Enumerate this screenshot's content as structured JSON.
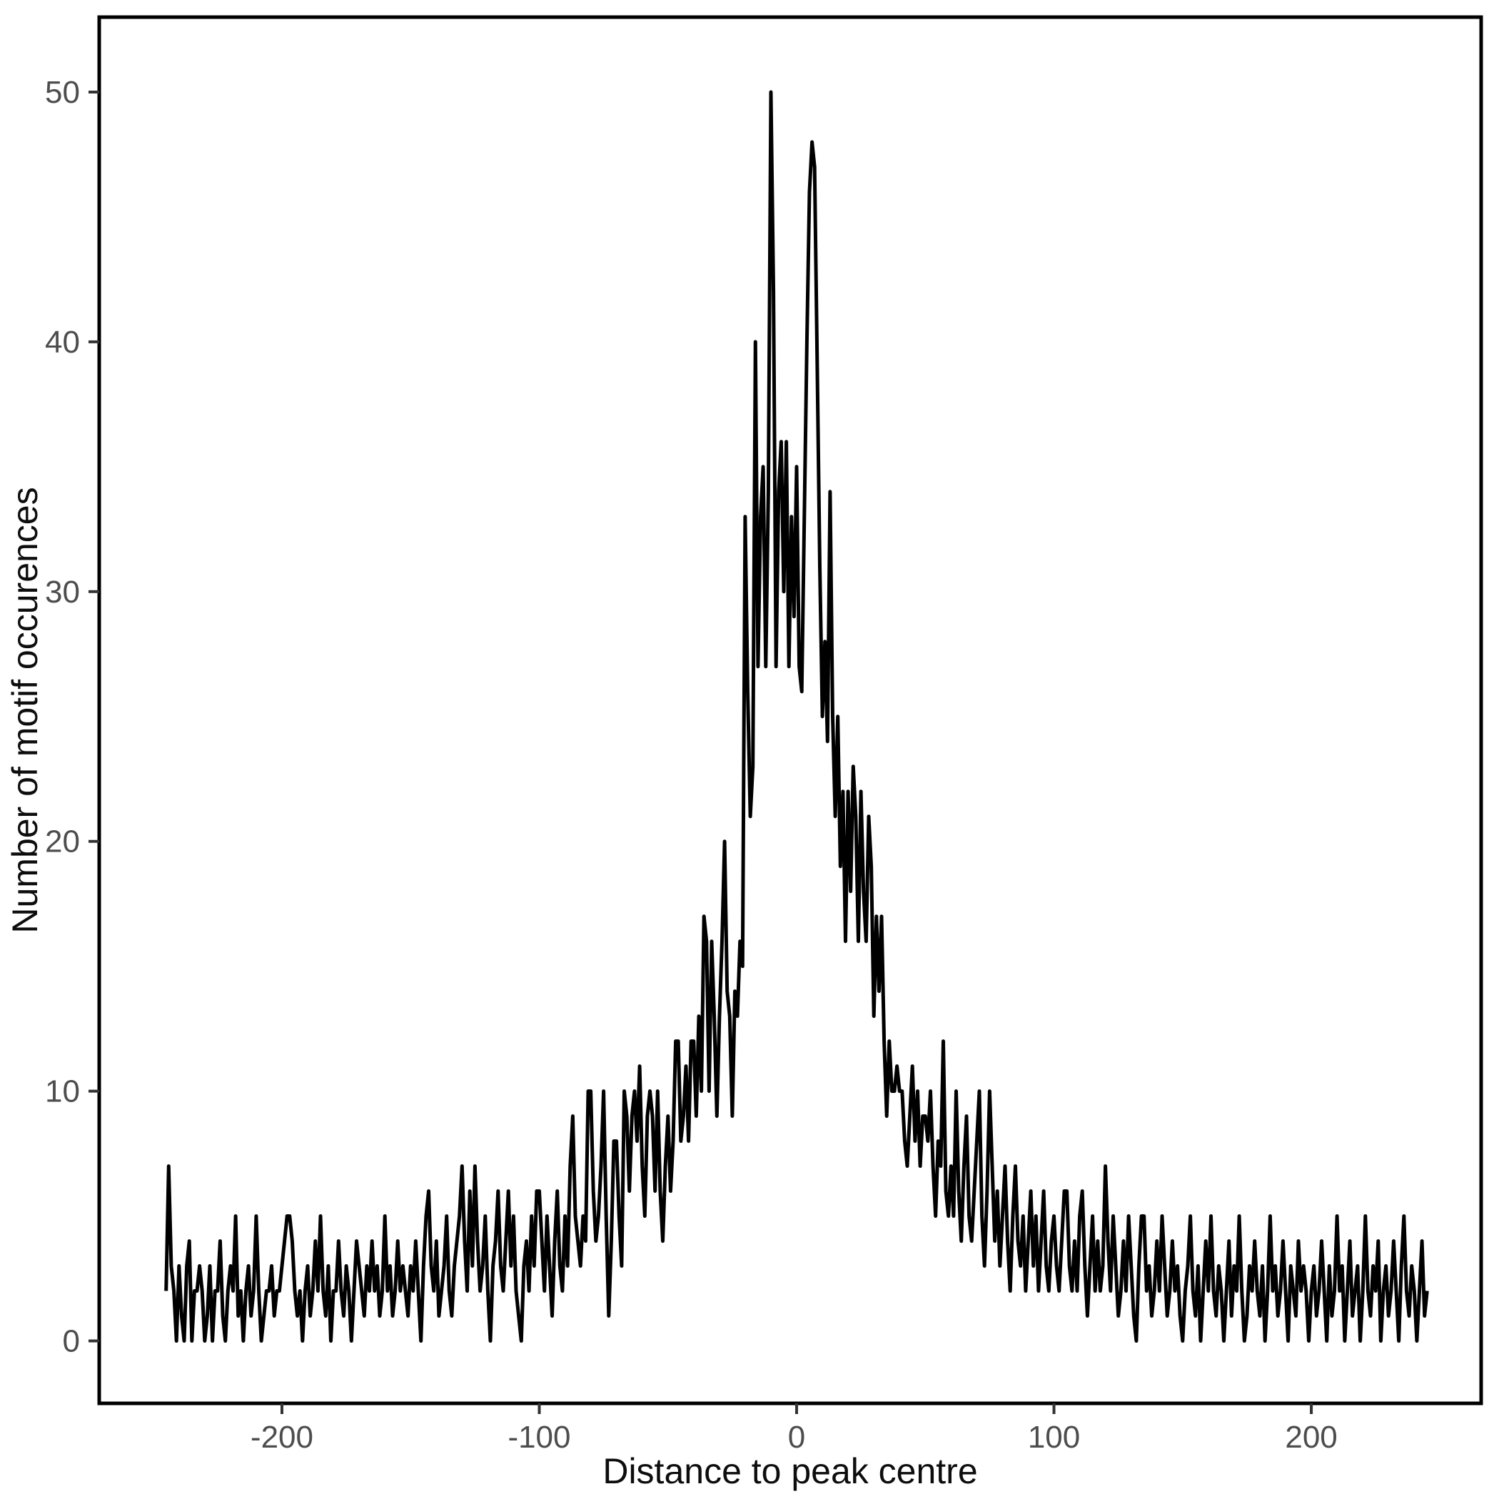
{
  "figure": {
    "background": "#FFFFFF"
  },
  "chart_data": {
    "type": "line",
    "title": "",
    "xlabel": "Distance to peak centre",
    "ylabel": "Number of motif occurences",
    "legend": false,
    "grid": false,
    "panel_border": true,
    "line_color": "#000000",
    "panel_border_color": "#000000",
    "tick_color": "#333333",
    "axis_tick_label_color": "#4D4D4D",
    "axis_title_color": "#0D0D0D",
    "xlim": [
      -271,
      266
    ],
    "ylim": [
      -2.5,
      53
    ],
    "x_ticks": [
      -200,
      -100,
      0,
      100,
      200
    ],
    "y_ticks": [
      0,
      10,
      20,
      30,
      40,
      50
    ],
    "x_start": -245,
    "x_step": 1,
    "values": [
      2,
      7,
      3,
      2,
      0,
      3,
      1,
      0,
      3,
      4,
      0,
      2,
      2,
      3,
      2,
      0,
      1,
      3,
      0,
      2,
      2,
      4,
      1,
      0,
      2,
      3,
      2,
      5,
      1,
      2,
      0,
      2,
      3,
      1,
      2,
      5,
      2,
      0,
      1,
      2,
      2,
      3,
      1,
      2,
      2,
      3,
      4,
      5,
      5,
      4,
      2,
      1,
      2,
      0,
      2,
      3,
      1,
      2,
      4,
      2,
      5,
      2,
      1,
      3,
      0,
      2,
      2,
      4,
      2,
      1,
      3,
      2,
      0,
      2,
      4,
      3,
      2,
      1,
      3,
      2,
      4,
      2,
      3,
      1,
      2,
      5,
      2,
      3,
      1,
      2,
      4,
      2,
      3,
      2,
      1,
      3,
      2,
      4,
      2,
      0,
      3,
      5,
      6,
      3,
      2,
      4,
      1,
      2,
      3,
      5,
      2,
      1,
      3,
      4,
      5,
      7,
      4,
      2,
      6,
      3,
      7,
      4,
      2,
      3,
      5,
      2,
      0,
      3,
      4,
      6,
      3,
      2,
      4,
      6,
      3,
      5,
      2,
      1,
      0,
      3,
      4,
      2,
      5,
      3,
      6,
      6,
      4,
      2,
      5,
      3,
      1,
      4,
      6,
      3,
      2,
      5,
      3,
      7,
      9,
      5,
      4,
      3,
      5,
      4,
      10,
      10,
      6,
      4,
      5,
      7,
      10,
      5,
      1,
      4,
      8,
      8,
      5,
      3,
      10,
      9,
      6,
      9,
      10,
      8,
      11,
      7,
      5,
      9,
      10,
      9,
      6,
      10,
      6,
      4,
      7,
      9,
      6,
      8,
      12,
      12,
      8,
      9,
      11,
      8,
      12,
      12,
      9,
      13,
      10,
      17,
      16,
      10,
      16,
      13,
      9,
      13,
      16,
      20,
      14,
      13,
      9,
      14,
      13,
      16,
      15,
      33,
      26,
      21,
      23,
      40,
      27,
      33,
      35,
      27,
      34,
      50,
      42,
      27,
      34,
      36,
      30,
      36,
      27,
      33,
      29,
      35,
      27,
      26,
      33,
      40,
      46,
      48,
      47,
      39,
      31,
      25,
      28,
      24,
      34,
      25,
      21,
      25,
      19,
      22,
      16,
      22,
      18,
      23,
      21,
      16,
      22,
      18,
      16,
      21,
      19,
      13,
      17,
      14,
      17,
      12,
      9,
      12,
      10,
      10,
      11,
      10,
      10,
      8,
      7,
      9,
      11,
      8,
      10,
      7,
      9,
      9,
      8,
      10,
      7,
      5,
      8,
      7,
      12,
      6,
      5,
      7,
      5,
      10,
      6,
      4,
      7,
      9,
      5,
      4,
      6,
      8,
      10,
      5,
      3,
      6,
      10,
      7,
      4,
      6,
      3,
      5,
      7,
      4,
      2,
      5,
      7,
      4,
      3,
      5,
      2,
      4,
      6,
      3,
      5,
      2,
      4,
      6,
      3,
      2,
      4,
      5,
      3,
      2,
      4,
      6,
      6,
      3,
      2,
      4,
      2,
      5,
      6,
      3,
      1,
      3,
      5,
      2,
      4,
      2,
      3,
      7,
      4,
      2,
      5,
      3,
      1,
      2,
      4,
      2,
      5,
      3,
      1,
      0,
      3,
      5,
      5,
      2,
      3,
      1,
      2,
      4,
      2,
      5,
      3,
      1,
      2,
      4,
      2,
      3,
      1,
      0,
      2,
      3,
      5,
      2,
      1,
      3,
      0,
      2,
      4,
      2,
      5,
      2,
      1,
      3,
      2,
      0,
      2,
      4,
      1,
      3,
      2,
      5,
      2,
      0,
      1,
      3,
      2,
      4,
      2,
      1,
      3,
      0,
      2,
      5,
      2,
      3,
      1,
      2,
      4,
      2,
      0,
      3,
      2,
      1,
      4,
      2,
      3,
      2,
      0,
      2,
      3,
      1,
      2,
      4,
      2,
      0,
      3,
      1,
      2,
      5,
      2,
      3,
      0,
      2,
      4,
      1,
      2,
      3,
      0,
      2,
      5,
      2,
      1,
      3,
      2,
      4,
      0,
      2,
      3,
      1,
      2,
      4,
      2,
      0,
      3,
      5,
      2,
      1,
      3,
      2,
      0,
      2,
      4,
      1,
      2
    ]
  }
}
